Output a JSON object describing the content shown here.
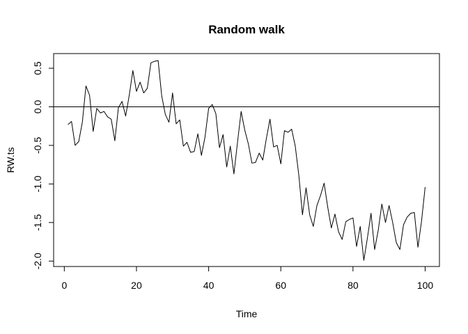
{
  "chart_data": {
    "type": "line",
    "title": "Random walk",
    "xlabel": "Time",
    "ylabel": "RW.ts",
    "xlim": [
      -2.96,
      103.96
    ],
    "ylim": [
      -2.07,
      0.69
    ],
    "x_ticks": [
      0,
      20,
      40,
      60,
      80,
      100
    ],
    "x_tick_labels": [
      "0",
      "20",
      "40",
      "60",
      "80",
      "100"
    ],
    "y_ticks": [
      -2.0,
      -1.5,
      -1.0,
      -0.5,
      0.0,
      0.5
    ],
    "y_tick_labels": [
      "-2.0",
      "-1.5",
      "-1.0",
      "-0.5",
      "0.0",
      "0.5"
    ],
    "reference_line": {
      "y": 0
    },
    "grid": false,
    "series": [
      {
        "x": [
          1,
          2,
          3,
          4,
          5,
          6,
          7,
          8,
          9,
          10,
          11,
          12,
          13,
          14,
          15,
          16,
          17,
          18,
          19,
          20,
          21,
          22,
          23,
          24,
          25,
          26,
          27,
          28,
          29,
          30,
          31,
          32,
          33,
          34,
          35,
          36,
          37,
          38,
          39,
          40,
          41,
          42,
          43,
          44,
          45,
          46,
          47,
          48,
          49,
          50,
          51,
          52,
          53,
          54,
          55,
          56,
          57,
          58,
          59,
          60,
          61,
          62,
          63,
          64,
          65,
          66,
          67,
          68,
          69,
          70,
          71,
          72,
          73,
          74,
          75,
          76,
          77,
          78,
          79,
          80,
          81,
          82,
          83,
          84,
          85,
          86,
          87,
          88,
          89,
          90,
          91,
          92,
          93,
          94,
          95,
          96,
          97,
          98,
          99,
          100
        ],
        "values": [
          -0.23,
          -0.19,
          -0.5,
          -0.45,
          -0.2,
          0.27,
          0.15,
          -0.32,
          -0.02,
          -0.08,
          -0.06,
          -0.13,
          -0.16,
          -0.44,
          -0.01,
          0.07,
          -0.12,
          0.15,
          0.47,
          0.2,
          0.32,
          0.18,
          0.24,
          0.57,
          0.59,
          0.6,
          0.14,
          -0.1,
          -0.2,
          0.18,
          -0.22,
          -0.17,
          -0.51,
          -0.46,
          -0.59,
          -0.58,
          -0.35,
          -0.63,
          -0.39,
          -0.02,
          0.03,
          -0.09,
          -0.53,
          -0.36,
          -0.78,
          -0.51,
          -0.87,
          -0.46,
          -0.06,
          -0.3,
          -0.48,
          -0.73,
          -0.72,
          -0.6,
          -0.69,
          -0.41,
          -0.16,
          -0.52,
          -0.5,
          -0.74,
          -0.31,
          -0.33,
          -0.29,
          -0.51,
          -0.89,
          -1.4,
          -1.05,
          -1.4,
          -1.55,
          -1.28,
          -1.15,
          -0.99,
          -1.3,
          -1.57,
          -1.39,
          -1.62,
          -1.72,
          -1.49,
          -1.46,
          -1.44,
          -1.81,
          -1.55,
          -1.99,
          -1.7,
          -1.38,
          -1.85,
          -1.6,
          -1.26,
          -1.5,
          -1.28,
          -1.5,
          -1.76,
          -1.85,
          -1.53,
          -1.43,
          -1.38,
          -1.37,
          -1.82,
          -1.48,
          -1.04
        ]
      }
    ]
  }
}
